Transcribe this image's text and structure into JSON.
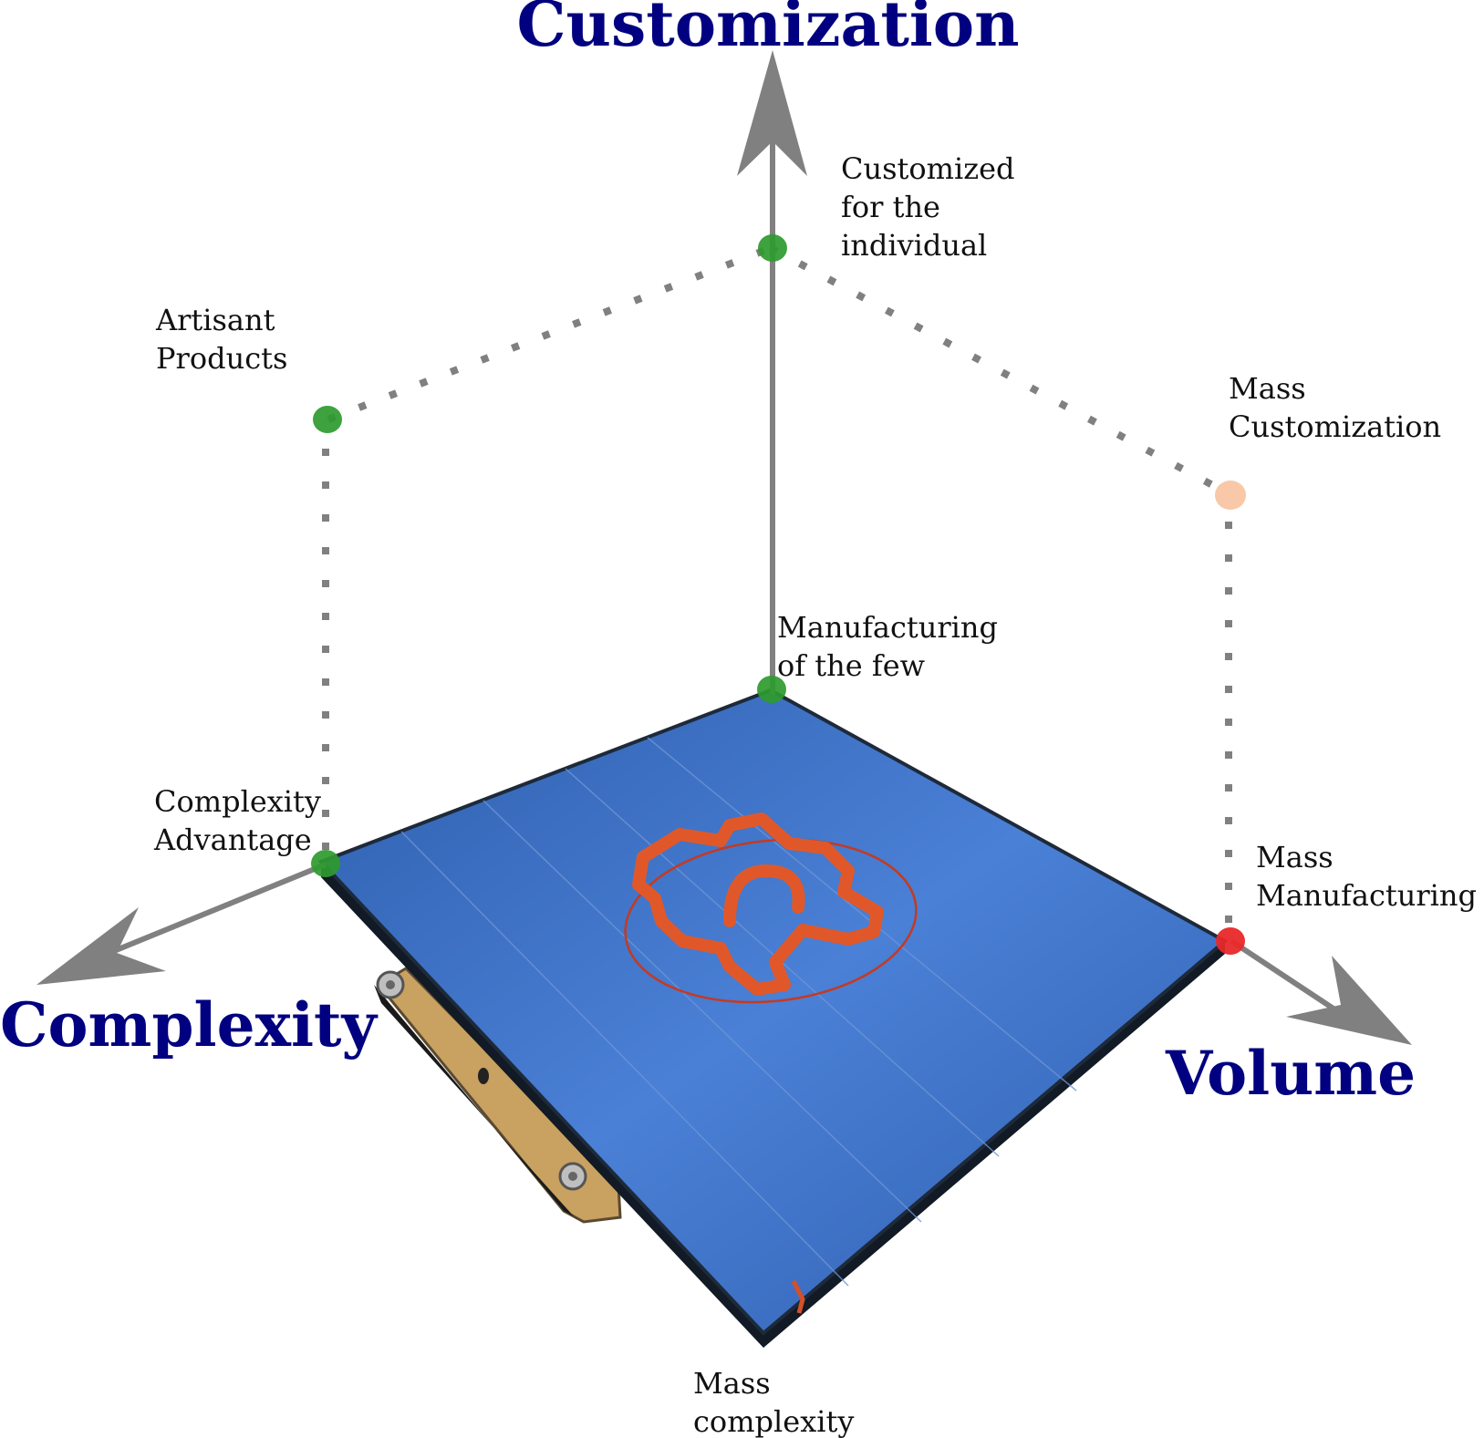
{
  "axes": {
    "customization": "Customization",
    "complexity": "Complexity",
    "volume": "Volume"
  },
  "points": {
    "customized_individual": [
      "Customized",
      "for the",
      "individual"
    ],
    "artisant": [
      "Artisant",
      "Products"
    ],
    "mass_customization": [
      "Mass",
      "Customization"
    ],
    "few": [
      "Manufacturing",
      "of the few"
    ],
    "complexity_advantage": [
      "Complexity",
      "Advantage"
    ],
    "mass_manufacturing": [
      "Mass",
      "Manufacturing"
    ],
    "mass_complexity": [
      "Mass",
      "complexity"
    ]
  },
  "colors": {
    "axis_title": "#000080",
    "axis_arrow": "#808080",
    "dotted_line": "#808080",
    "point_green": "#2e9a2e",
    "point_red": "#e8282a",
    "point_peach": "#f8c8a8",
    "plate_blue": "#3a6ec4",
    "plate_edge": "#1e2a3a",
    "print_orange": "#e0582a",
    "bracket_wood": "#c8a060"
  }
}
